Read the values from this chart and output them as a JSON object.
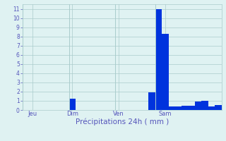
{
  "title": "Précipitations 24h ( mm )",
  "bar_color": "#0033dd",
  "background_color": "#dff2f2",
  "grid_color": "#aacccc",
  "text_color": "#5555bb",
  "ylim": [
    0,
    11.5
  ],
  "yticks": [
    0,
    1,
    2,
    3,
    4,
    5,
    6,
    7,
    8,
    9,
    10,
    11
  ],
  "bar_values": [
    0,
    0,
    0,
    0,
    0,
    0,
    0,
    1.2,
    0,
    0,
    0,
    0,
    0,
    0,
    0,
    0,
    0,
    0,
    0,
    1.9,
    11.0,
    8.3,
    0.35,
    0.4,
    0.45,
    0.45,
    0.9,
    1.0,
    0.35,
    0.5
  ],
  "day_labels": [
    "Jeu",
    "Dim",
    "Ven",
    "Sam"
  ],
  "day_label_bars": [
    1,
    7,
    14,
    21
  ],
  "day_vlines": [
    -0.5,
    6.5,
    13.5,
    19.5
  ]
}
